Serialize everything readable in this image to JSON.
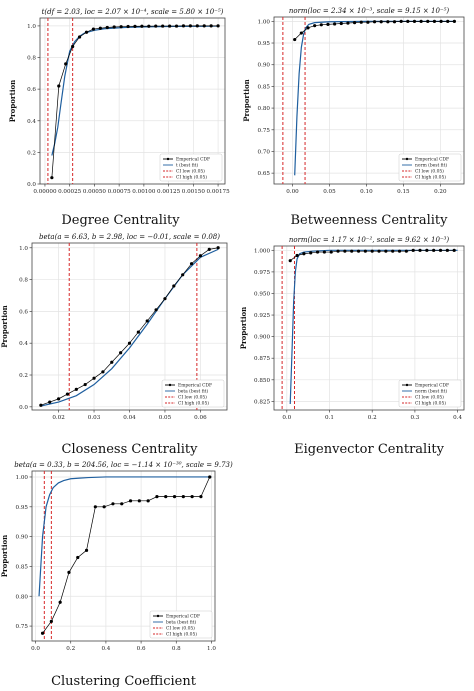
{
  "legend_labels": {
    "empirical": "Emperical CDF",
    "ci_low": "CI low (0.05)",
    "ci_high": "CI high (0.05)"
  },
  "colors": {
    "empirical": "#000000",
    "fit": "#1f5f9f",
    "ci": "#d62728",
    "grid": "#e3e3e3",
    "axis": "#444444"
  },
  "chart_data": [
    {
      "id": "degree",
      "type": "line",
      "title": "t(df = 2.03, loc = 2.07 × 10⁻⁴, scale = 5.80 × 10⁻⁵)",
      "caption": "Degree Centrality",
      "xlabel": "",
      "ylabel": "Proportion",
      "xlim": [
        -5e-05,
        0.00182
      ],
      "ylim": [
        0.0,
        1.05
      ],
      "grid": true,
      "legend_placement": "bottom-right",
      "fit_name": "t (best fit)",
      "xticks": [
        0.0,
        0.00025,
        0.0005,
        0.00075,
        0.001,
        0.00125,
        0.0015,
        0.00175
      ],
      "xtick_labels": [
        "0.00000",
        "0.00025",
        "0.00050",
        "0.00075",
        "0.00100",
        "0.00125",
        "0.00150",
        "0.00175"
      ],
      "yticks": [
        0.0,
        0.2,
        0.4,
        0.6,
        0.8,
        1.0
      ],
      "ytick_labels": [
        "0.0",
        "0.2",
        "0.4",
        "0.6",
        "0.8",
        "1.0"
      ],
      "empirical": {
        "x": [
          7e-05,
          0.00014,
          0.00021,
          0.00028,
          0.00035,
          0.00042,
          0.00049,
          0.00056,
          0.00063,
          0.0007,
          0.00077,
          0.00084,
          0.00091,
          0.00098,
          0.00105,
          0.00112,
          0.00119,
          0.00126,
          0.00133,
          0.0014,
          0.00147,
          0.00154,
          0.00161,
          0.00168,
          0.00175
        ],
        "y": [
          0.04,
          0.62,
          0.76,
          0.87,
          0.93,
          0.96,
          0.98,
          0.985,
          0.99,
          0.993,
          0.995,
          0.996,
          0.997,
          0.998,
          0.998,
          0.999,
          0.999,
          0.999,
          0.999,
          1.0,
          1.0,
          1.0,
          1.0,
          1.0,
          1.0
        ]
      },
      "fit": {
        "x": [
          7e-05,
          0.0001,
          0.00013,
          0.00016,
          0.0002,
          0.00025,
          0.0003,
          0.00035,
          0.0004,
          0.0005,
          0.0006,
          0.0008,
          0.001,
          0.0013,
          0.0016,
          0.00175
        ],
        "y": [
          0.18,
          0.26,
          0.36,
          0.5,
          0.68,
          0.84,
          0.9,
          0.935,
          0.955,
          0.972,
          0.982,
          0.99,
          0.994,
          0.997,
          0.998,
          0.999
        ]
      },
      "ci_low": 3e-05,
      "ci_high": 0.00028
    },
    {
      "id": "betweenness",
      "type": "line",
      "title": "norm(loc = 2.34 × 10⁻³, scale = 9.15 × 10⁻⁵)",
      "caption": "Betweenness Centrality",
      "xlabel": "",
      "ylabel": "Proportion",
      "xlim": [
        -0.025,
        0.232
      ],
      "ylim": [
        0.625,
        1.01
      ],
      "grid": true,
      "legend_placement": "bottom-right",
      "fit_name": "norm (best fit)",
      "xticks": [
        0.0,
        0.05,
        0.1,
        0.15,
        0.2
      ],
      "xtick_labels": [
        "0.00",
        "0.05",
        "0.10",
        "0.15",
        "0.20"
      ],
      "yticks": [
        0.65,
        0.7,
        0.75,
        0.8,
        0.85,
        0.9,
        0.95,
        1.0
      ],
      "ytick_labels": [
        "0.65",
        "0.70",
        "0.75",
        "0.80",
        "0.85",
        "0.90",
        "0.95",
        "1.00"
      ],
      "empirical": {
        "x": [
          0.003,
          0.012,
          0.021,
          0.03,
          0.039,
          0.048,
          0.057,
          0.066,
          0.075,
          0.084,
          0.093,
          0.102,
          0.111,
          0.12,
          0.129,
          0.138,
          0.147,
          0.156,
          0.165,
          0.174,
          0.183,
          0.192,
          0.201,
          0.21,
          0.219
        ],
        "y": [
          0.958,
          0.973,
          0.985,
          0.99,
          0.992,
          0.993,
          0.994,
          0.995,
          0.996,
          0.997,
          0.998,
          0.998,
          0.999,
          0.999,
          0.999,
          0.999,
          1.0,
          1.0,
          1.0,
          1.0,
          1.0,
          1.0,
          1.0,
          1.0,
          1.0
        ]
      },
      "fit": {
        "x": [
          0.003,
          0.006,
          0.009,
          0.012,
          0.015,
          0.018,
          0.022,
          0.03,
          0.05,
          0.1,
          0.15,
          0.22
        ],
        "y": [
          0.645,
          0.78,
          0.88,
          0.94,
          0.97,
          0.985,
          0.993,
          0.997,
          0.999,
          1.0,
          1.0,
          1.0
        ]
      },
      "ci_low": -0.013,
      "ci_high": 0.017
    },
    {
      "id": "closeness",
      "type": "line",
      "title": "beta(a = 6.63, b = 2.98, loc = −0.01, scale = 0.08)",
      "caption": "Closeness Centrality",
      "xlabel": "",
      "ylabel": "Proportion",
      "xlim": [
        0.0125,
        0.0675
      ],
      "ylim": [
        -0.02,
        1.03
      ],
      "grid": true,
      "legend_placement": "bottom-right",
      "fit_name": "beta (best fit)",
      "xticks": [
        0.02,
        0.03,
        0.04,
        0.05,
        0.06
      ],
      "xtick_labels": [
        "0.02",
        "0.03",
        "0.04",
        "0.05",
        "0.06"
      ],
      "yticks": [
        0.0,
        0.2,
        0.4,
        0.6,
        0.8,
        1.0
      ],
      "ytick_labels": [
        "0.0",
        "0.2",
        "0.4",
        "0.6",
        "0.8",
        "1.0"
      ],
      "empirical": {
        "x": [
          0.015,
          0.0175,
          0.02,
          0.0225,
          0.025,
          0.0275,
          0.03,
          0.0325,
          0.035,
          0.0375,
          0.04,
          0.0425,
          0.045,
          0.0475,
          0.05,
          0.0525,
          0.055,
          0.0575,
          0.06,
          0.0625,
          0.065
        ],
        "y": [
          0.01,
          0.03,
          0.05,
          0.08,
          0.11,
          0.14,
          0.18,
          0.22,
          0.28,
          0.34,
          0.4,
          0.47,
          0.54,
          0.61,
          0.68,
          0.76,
          0.83,
          0.9,
          0.95,
          0.99,
          1.0
        ]
      },
      "fit": {
        "x": [
          0.015,
          0.02,
          0.025,
          0.03,
          0.035,
          0.04,
          0.045,
          0.05,
          0.055,
          0.06,
          0.065
        ],
        "y": [
          0.005,
          0.03,
          0.07,
          0.14,
          0.24,
          0.37,
          0.52,
          0.68,
          0.83,
          0.94,
          0.99
        ]
      },
      "ci_low": 0.023,
      "ci_high": 0.059
    },
    {
      "id": "eigenvector",
      "type": "line",
      "title": "norm(loc = 1.17 × 10⁻², scale = 9.62 × 10⁻³)",
      "caption": "Eigenvector Centrality",
      "xlabel": "",
      "ylabel": "Proportion",
      "xlim": [
        -0.03,
        0.415
      ],
      "ylim": [
        0.815,
        1.005
      ],
      "grid": true,
      "legend_placement": "bottom-right",
      "fit_name": "norm (best fit)",
      "xticks": [
        0.0,
        0.1,
        0.2,
        0.3,
        0.4
      ],
      "xtick_labels": [
        "0.0",
        "0.1",
        "0.2",
        "0.3",
        "0.4"
      ],
      "yticks": [
        0.825,
        0.85,
        0.875,
        0.9,
        0.925,
        0.95,
        0.975,
        1.0
      ],
      "ytick_labels": [
        "0.825",
        "0.850",
        "0.875",
        "0.900",
        "0.925",
        "0.950",
        "0.975",
        "1.000"
      ],
      "empirical": {
        "x": [
          0.008,
          0.024,
          0.04,
          0.056,
          0.072,
          0.088,
          0.104,
          0.12,
          0.136,
          0.152,
          0.168,
          0.184,
          0.2,
          0.216,
          0.232,
          0.248,
          0.264,
          0.28,
          0.296,
          0.312,
          0.328,
          0.344,
          0.36,
          0.376,
          0.392
        ],
        "y": [
          0.988,
          0.994,
          0.996,
          0.997,
          0.998,
          0.998,
          0.998,
          0.999,
          0.999,
          0.999,
          0.999,
          0.999,
          0.999,
          0.999,
          0.999,
          0.999,
          0.999,
          0.999,
          1.0,
          1.0,
          1.0,
          1.0,
          1.0,
          1.0,
          1.0
        ]
      },
      "fit": {
        "x": [
          0.008,
          0.012,
          0.016,
          0.02,
          0.024,
          0.03,
          0.04,
          0.06,
          0.1,
          0.2,
          0.3,
          0.4
        ],
        "y": [
          0.822,
          0.88,
          0.94,
          0.975,
          0.99,
          0.996,
          0.998,
          0.999,
          1.0,
          1.0,
          1.0,
          1.0
        ]
      },
      "ci_low": -0.011,
      "ci_high": 0.018
    },
    {
      "id": "clustering",
      "type": "line",
      "title": "beta(a = 0.33, b = 204.56, loc = −1.14 × 10⁻³⁰, scale = 9.73)",
      "caption": "Clustering Coefficient",
      "xlabel": "",
      "ylabel": "Proportion",
      "xlim": [
        -0.02,
        1.02
      ],
      "ylim": [
        0.725,
        1.01
      ],
      "grid": true,
      "legend_placement": "bottom-right",
      "fit_name": "beta (best fit)",
      "xticks": [
        0.0,
        0.2,
        0.4,
        0.6,
        0.8,
        1.0
      ],
      "xtick_labels": [
        "0.0",
        "0.2",
        "0.4",
        "0.6",
        "0.8",
        "1.0"
      ],
      "yticks": [
        0.75,
        0.8,
        0.85,
        0.9,
        0.95,
        1.0
      ],
      "ytick_labels": [
        "0.75",
        "0.80",
        "0.85",
        "0.90",
        "0.95",
        "1.00"
      ],
      "empirical": {
        "x": [
          0.04,
          0.09,
          0.14,
          0.19,
          0.24,
          0.29,
          0.34,
          0.39,
          0.44,
          0.49,
          0.54,
          0.59,
          0.64,
          0.69,
          0.74,
          0.79,
          0.84,
          0.89,
          0.94,
          0.99
        ],
        "y": [
          0.738,
          0.758,
          0.79,
          0.84,
          0.865,
          0.877,
          0.95,
          0.95,
          0.955,
          0.955,
          0.96,
          0.96,
          0.96,
          0.967,
          0.967,
          0.967,
          0.967,
          0.967,
          0.967,
          1.0
        ]
      },
      "fit": {
        "x": [
          0.02,
          0.04,
          0.06,
          0.08,
          0.1,
          0.13,
          0.16,
          0.2,
          0.25,
          0.3,
          0.4,
          0.5,
          0.7,
          1.0
        ],
        "y": [
          0.8,
          0.9,
          0.95,
          0.97,
          0.982,
          0.99,
          0.994,
          0.997,
          0.998,
          0.999,
          1.0,
          1.0,
          1.0,
          1.0
        ]
      },
      "ci_low": 0.05,
      "ci_high": 0.09
    }
  ]
}
